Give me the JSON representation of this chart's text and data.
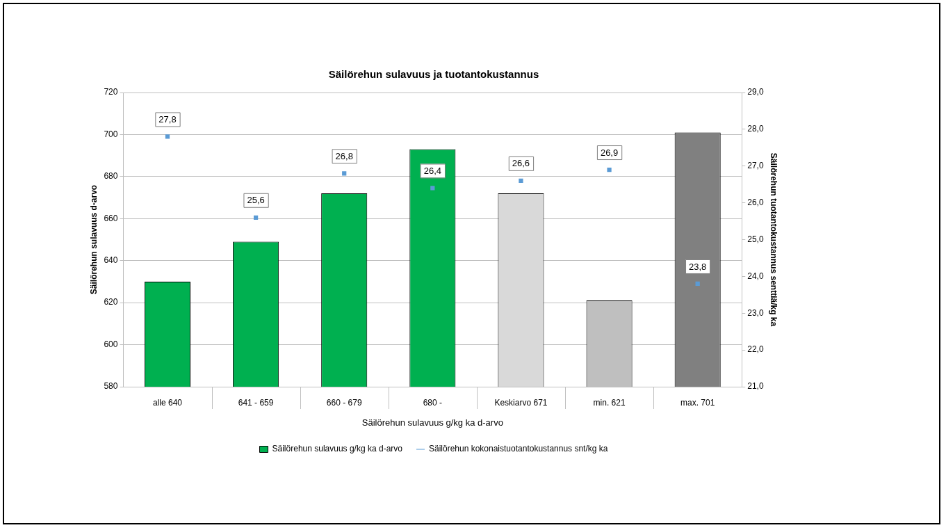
{
  "chart_data": {
    "type": "bar",
    "title": "Säilörehun sulavuus ja tuotantokustannus",
    "xlabel": "Säilörehun sulavuus g/kg ka d-arvo",
    "ylabel": "Säilörehun sulavuus d-arvo",
    "y2label": "Säilörehun tuotantokustannus senttiä/kg ka",
    "categories": [
      "alle 640",
      "641 - 659",
      "660 - 679",
      "680 -",
      "Keskiarvo 671",
      "min. 621",
      "max. 701"
    ],
    "series": [
      {
        "name": "Säilörehun sulavuus g/kg ka d-arvo",
        "type": "bar",
        "color": "#00b050",
        "colors": [
          "#00b050",
          "#00b050",
          "#00b050",
          "#00b050",
          "#d9d9d9",
          "#bfbfbf",
          "#808080"
        ],
        "values": [
          630,
          649,
          672,
          693,
          672,
          621,
          701
        ]
      },
      {
        "name": "Säilörehun kokonaistuotantokustannus snt/kg ka",
        "type": "scatter",
        "axis": "y2",
        "color": "#5b9bd5",
        "marker": "square",
        "values": [
          27.8,
          25.6,
          26.8,
          26.4,
          26.6,
          26.9,
          23.8
        ],
        "value_labels": [
          "27,8",
          "25,6",
          "26,8",
          "26,4",
          "26,6",
          "26,9",
          "23,8"
        ]
      }
    ],
    "ylim": [
      580,
      720
    ],
    "yticks": [
      580,
      600,
      620,
      640,
      660,
      680,
      700,
      720
    ],
    "y2lim": [
      21,
      29
    ],
    "y2ticks": [
      {
        "value": 21,
        "label": "21,0"
      },
      {
        "value": 22,
        "label": "22,0"
      },
      {
        "value": 23,
        "label": "23,0"
      },
      {
        "value": 24,
        "label": "24,0"
      },
      {
        "value": 25,
        "label": "25,0"
      },
      {
        "value": 26,
        "label": "26,0"
      },
      {
        "value": 27,
        "label": "27,0"
      },
      {
        "value": 28,
        "label": "28,0"
      },
      {
        "value": 29,
        "label": "29,0"
      }
    ],
    "grid": "y",
    "legend": "bottom"
  }
}
